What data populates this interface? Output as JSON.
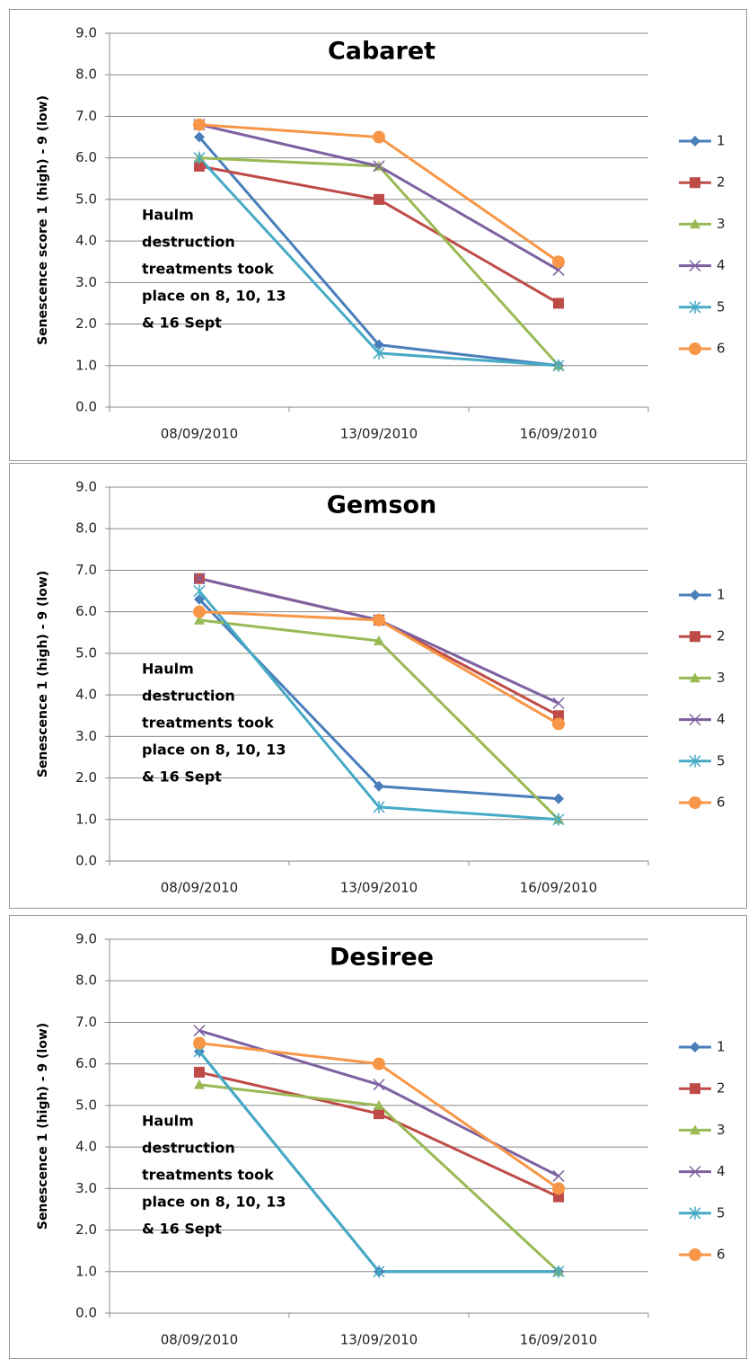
{
  "chart_data": [
    {
      "type": "line",
      "title": "Cabaret",
      "y_label": "Senescence score 1 (high) - 9 (low)",
      "annotation": [
        "Haulm",
        "destruction",
        "treatments took",
        "place on 8, 10, 13",
        "& 16 Sept"
      ],
      "categories": [
        "08/09/2010",
        "13/09/2010",
        "16/09/2010"
      ],
      "ylim": [
        0,
        9
      ],
      "yticks": [
        {
          "value": 0,
          "label": "0.0"
        },
        {
          "value": 1,
          "label": "1.0"
        },
        {
          "value": 2,
          "label": "2.0"
        },
        {
          "value": 3,
          "label": "3.0"
        },
        {
          "value": 4,
          "label": "4.0"
        },
        {
          "value": 5,
          "label": "5.0"
        },
        {
          "value": 6,
          "label": "6.0"
        },
        {
          "value": 7,
          "label": "7.0"
        },
        {
          "value": 8,
          "label": "8.0"
        },
        {
          "value": 9,
          "label": "9.0"
        }
      ],
      "grid": true,
      "legend": "right",
      "series": [
        {
          "name": "1",
          "color": "#4a7ebb",
          "marker": "diamond",
          "values": [
            6.5,
            1.5,
            1.0
          ]
        },
        {
          "name": "2",
          "color": "#be4b48",
          "marker": "square",
          "values": [
            5.8,
            5.0,
            2.5
          ]
        },
        {
          "name": "3",
          "color": "#98b954",
          "marker": "triangle",
          "values": [
            6.0,
            5.8,
            1.0
          ]
        },
        {
          "name": "4",
          "color": "#7d60a0",
          "marker": "x",
          "values": [
            6.8,
            5.8,
            3.3
          ]
        },
        {
          "name": "5",
          "color": "#46aac5",
          "marker": "star",
          "values": [
            6.0,
            1.3,
            1.0
          ]
        },
        {
          "name": "6",
          "color": "#f79646",
          "marker": "circle",
          "values": [
            6.8,
            6.5,
            3.5
          ]
        }
      ]
    },
    {
      "type": "line",
      "title": "Gemson",
      "y_label": "Senescence 1 (high) - 9 (low)",
      "annotation": [
        "Haulm",
        "destruction",
        "treatments took",
        "place on 8, 10, 13",
        "& 16 Sept"
      ],
      "categories": [
        "08/09/2010",
        "13/09/2010",
        "16/09/2010"
      ],
      "ylim": [
        0,
        9
      ],
      "yticks": [
        {
          "value": 0,
          "label": "0.0"
        },
        {
          "value": 1,
          "label": "1.0"
        },
        {
          "value": 2,
          "label": "2.0"
        },
        {
          "value": 3,
          "label": "3.0"
        },
        {
          "value": 4,
          "label": "4.0"
        },
        {
          "value": 5,
          "label": "5.0"
        },
        {
          "value": 6,
          "label": "6.0"
        },
        {
          "value": 7,
          "label": "7.0"
        },
        {
          "value": 8,
          "label": "8.0"
        },
        {
          "value": 9,
          "label": "9.0"
        }
      ],
      "grid": true,
      "legend": "right",
      "series": [
        {
          "name": "1",
          "color": "#4a7ebb",
          "marker": "diamond",
          "values": [
            6.3,
            1.8,
            1.5
          ]
        },
        {
          "name": "2",
          "color": "#be4b48",
          "marker": "square",
          "values": [
            6.8,
            5.8,
            3.5
          ]
        },
        {
          "name": "3",
          "color": "#98b954",
          "marker": "triangle",
          "values": [
            5.8,
            5.3,
            1.0
          ]
        },
        {
          "name": "4",
          "color": "#7d60a0",
          "marker": "x",
          "values": [
            6.8,
            5.8,
            3.8
          ]
        },
        {
          "name": "5",
          "color": "#46aac5",
          "marker": "star",
          "values": [
            6.5,
            1.3,
            1.0
          ]
        },
        {
          "name": "6",
          "color": "#f79646",
          "marker": "circle",
          "values": [
            6.0,
            5.8,
            3.3
          ]
        }
      ]
    },
    {
      "type": "line",
      "title": "Desiree",
      "y_label": "Senescence 1 (high) - 9 (low)",
      "annotation": [
        "Haulm",
        "destruction",
        "treatments took",
        "place on 8, 10, 13",
        "& 16 Sept"
      ],
      "categories": [
        "08/09/2010",
        "13/09/2010",
        "16/09/2010"
      ],
      "ylim": [
        0,
        9
      ],
      "yticks": [
        {
          "value": 0,
          "label": "0.0"
        },
        {
          "value": 1,
          "label": "1.0"
        },
        {
          "value": 2,
          "label": "2.0"
        },
        {
          "value": 3,
          "label": "3.0"
        },
        {
          "value": 4,
          "label": "4.0"
        },
        {
          "value": 5,
          "label": "5.0"
        },
        {
          "value": 6,
          "label": "6.0"
        },
        {
          "value": 7,
          "label": "7.0"
        },
        {
          "value": 8,
          "label": "8.0"
        },
        {
          "value": 9,
          "label": "9.0"
        }
      ],
      "grid": true,
      "legend": "right",
      "series": [
        {
          "name": "1",
          "color": "#4a7ebb",
          "marker": "diamond",
          "values": [
            6.3,
            1.0,
            1.0
          ]
        },
        {
          "name": "2",
          "color": "#be4b48",
          "marker": "square",
          "values": [
            5.8,
            4.8,
            2.8
          ]
        },
        {
          "name": "3",
          "color": "#98b954",
          "marker": "triangle",
          "values": [
            5.5,
            5.0,
            1.0
          ]
        },
        {
          "name": "4",
          "color": "#7d60a0",
          "marker": "x",
          "values": [
            6.8,
            5.5,
            3.3
          ]
        },
        {
          "name": "5",
          "color": "#46aac5",
          "marker": "star",
          "values": [
            6.3,
            1.0,
            1.0
          ]
        },
        {
          "name": "6",
          "color": "#f79646",
          "marker": "circle",
          "values": [
            6.5,
            6.0,
            3.0
          ]
        }
      ]
    }
  ]
}
